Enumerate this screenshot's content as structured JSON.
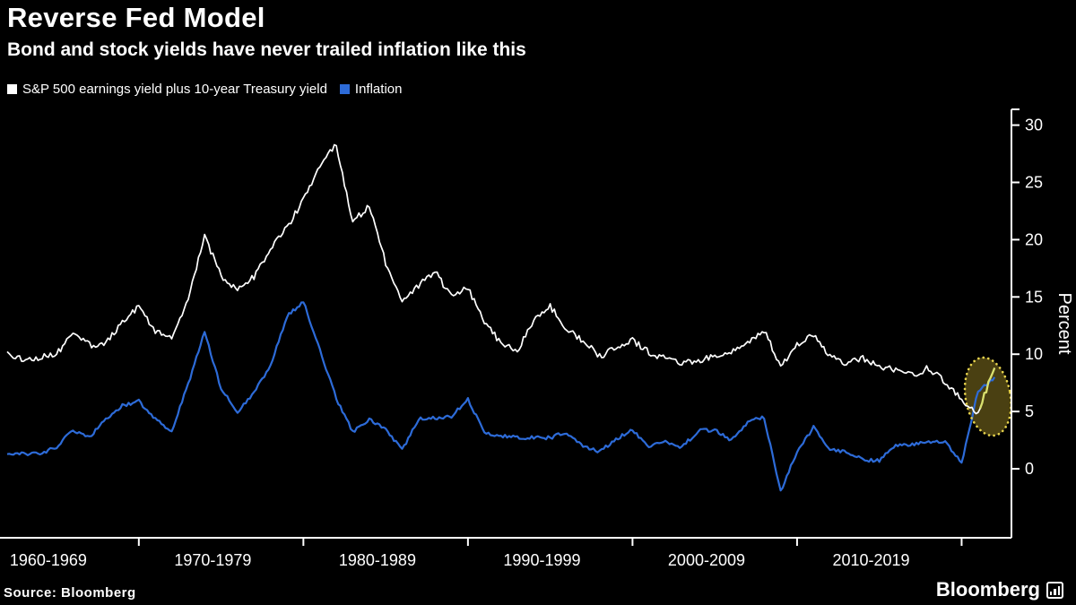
{
  "header": {
    "title": "Reverse Fed Model",
    "subtitle": "Bond and stock yields have never trailed inflation like this"
  },
  "legend": {
    "series1": "S&P 500 earnings yield plus 10-year Treasury yield",
    "series2": "Inflation"
  },
  "footer": {
    "source": "Source: Bloomberg",
    "logo": "Bloomberg"
  },
  "colors": {
    "background": "#000000",
    "axis": "#ffffff",
    "highlight": "#e8d44d",
    "highlight_fill": "rgba(164,141,40,0.45)",
    "highlight_segment": "#d9e06e"
  },
  "chart_data": {
    "type": "line",
    "title": "Reverse Fed Model",
    "subtitle": "Bond and stock yields have never trailed inflation like this",
    "ylabel": "Percent",
    "xlabel": "",
    "grid": false,
    "legend_position": "top-left",
    "yticks": [
      0,
      5,
      10,
      15,
      20,
      25,
      30
    ],
    "ylim": [
      -6,
      31.5
    ],
    "x_start": 1962,
    "x_end": 2022.7,
    "x_tick_years": [
      1970,
      1980,
      1990,
      2000,
      2010,
      2020
    ],
    "x_labels": [
      {
        "label": "1960-1969",
        "center_year": 1964.5
      },
      {
        "label": "1970-1979",
        "center_year": 1974.5
      },
      {
        "label": "1980-1989",
        "center_year": 1984.5
      },
      {
        "label": "1990-1999",
        "center_year": 1994.5
      },
      {
        "label": "2000-2009",
        "center_year": 2004.5
      },
      {
        "label": "2010-2019",
        "center_year": 2014.5
      }
    ],
    "years": [
      1962,
      1963,
      1964,
      1965,
      1966,
      1967,
      1968,
      1969,
      1970,
      1971,
      1972,
      1973,
      1974,
      1975,
      1976,
      1977,
      1978,
      1979,
      1980,
      1981,
      1982,
      1983,
      1984,
      1985,
      1986,
      1987,
      1988,
      1989,
      1990,
      1991,
      1992,
      1993,
      1994,
      1995,
      1996,
      1997,
      1998,
      1999,
      2000,
      2001,
      2002,
      2003,
      2004,
      2005,
      2006,
      2007,
      2008,
      2009,
      2010,
      2011,
      2012,
      2013,
      2014,
      2015,
      2016,
      2017,
      2018,
      2019,
      2020,
      2021,
      2022
    ],
    "series": [
      {
        "name": "S&P 500 earnings yield plus 10-year Treasury yield",
        "color": "#ffffff",
        "values": [
          10.0,
          9.5,
          9.7,
          10.0,
          11.8,
          10.8,
          10.9,
          12.8,
          14.2,
          12.0,
          11.3,
          14.8,
          20.3,
          16.8,
          15.5,
          16.8,
          19.2,
          21.0,
          23.5,
          26.5,
          28.3,
          21.5,
          23.0,
          18.0,
          14.5,
          16.0,
          17.2,
          15.0,
          15.8,
          12.8,
          11.0,
          10.2,
          13.0,
          14.2,
          12.2,
          11.2,
          9.8,
          10.6,
          11.2,
          10.2,
          9.6,
          9.2,
          9.4,
          9.8,
          10.3,
          11.0,
          12.0,
          9.0,
          10.8,
          11.8,
          9.8,
          9.2,
          9.6,
          9.0,
          8.6,
          8.2,
          8.8,
          7.6,
          6.0,
          4.9,
          8.8
        ]
      },
      {
        "name": "Inflation",
        "color": "#2d6bd8",
        "values": [
          1.2,
          1.3,
          1.3,
          1.9,
          3.4,
          2.8,
          4.3,
          5.5,
          5.9,
          4.3,
          3.3,
          7.4,
          12.0,
          7.0,
          5.0,
          6.7,
          9.0,
          13.3,
          14.6,
          10.4,
          6.1,
          3.2,
          4.3,
          3.5,
          1.6,
          4.4,
          4.4,
          4.6,
          6.1,
          3.1,
          2.9,
          2.7,
          2.7,
          2.7,
          3.2,
          1.9,
          1.5,
          2.6,
          3.4,
          1.9,
          2.4,
          1.9,
          3.3,
          3.4,
          2.5,
          4.1,
          4.5,
          -2.0,
          1.5,
          3.6,
          1.7,
          1.5,
          0.8,
          0.7,
          2.1,
          2.1,
          2.4,
          2.3,
          0.5,
          6.8,
          8.0
        ]
      }
    ],
    "highlight": {
      "year": 2021.6,
      "value": 6.3
    }
  }
}
